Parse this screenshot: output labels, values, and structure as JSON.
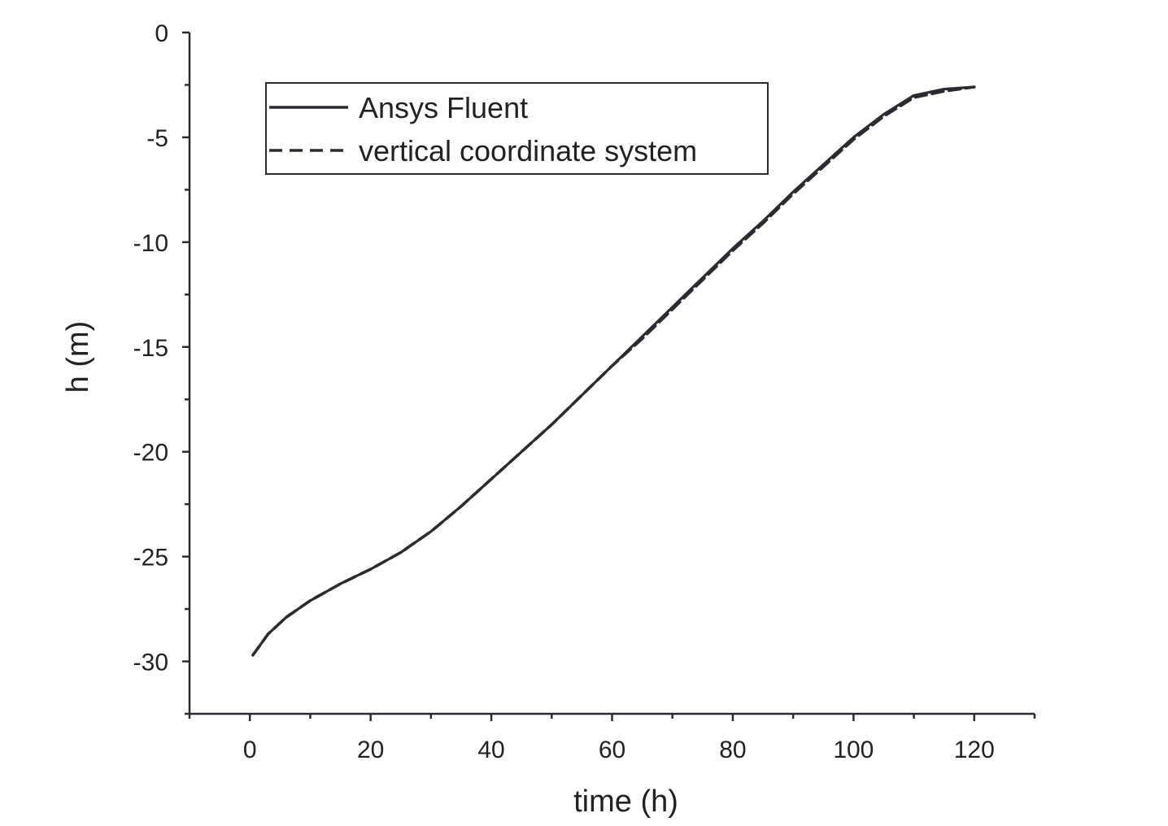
{
  "chart_data": {
    "type": "line",
    "title": "",
    "xlabel": "time (h)",
    "ylabel": "h (m)",
    "xlim": [
      -10,
      130
    ],
    "ylim": [
      -32.5,
      0
    ],
    "xticks": [
      0,
      20,
      40,
      60,
      80,
      100,
      120
    ],
    "yticks": [
      0,
      -5,
      -10,
      -15,
      -20,
      -25,
      -30
    ],
    "grid": false,
    "legend_position": "top-left",
    "series": [
      {
        "name": "Ansys Fluent",
        "style": "solid",
        "color": "#2b2b33",
        "x": [
          0.5,
          3,
          6,
          10,
          15,
          20,
          25,
          30,
          35,
          40,
          45,
          50,
          55,
          60,
          65,
          70,
          75,
          80,
          85,
          90,
          95,
          100,
          105,
          110,
          115,
          120
        ],
        "y": [
          -29.7,
          -28.7,
          -27.9,
          -27.1,
          -26.3,
          -25.6,
          -24.8,
          -23.8,
          -22.6,
          -21.3,
          -20.0,
          -18.7,
          -17.3,
          -15.9,
          -14.5,
          -13.1,
          -11.7,
          -10.3,
          -9.0,
          -7.6,
          -6.3,
          -5.0,
          -3.9,
          -3.0,
          -2.7,
          -2.6
        ]
      },
      {
        "name": "vertical coordinate system",
        "style": "dashed",
        "color": "#2b2b33",
        "x": [
          0.5,
          3,
          6,
          10,
          15,
          20,
          25,
          30,
          35,
          40,
          45,
          50,
          55,
          60,
          65,
          70,
          75,
          80,
          85,
          90,
          95,
          100,
          105,
          110,
          115,
          120
        ],
        "y": [
          -29.7,
          -28.7,
          -27.9,
          -27.1,
          -26.3,
          -25.6,
          -24.8,
          -23.8,
          -22.6,
          -21.3,
          -20.0,
          -18.7,
          -17.3,
          -15.9,
          -14.6,
          -13.2,
          -11.8,
          -10.4,
          -9.1,
          -7.7,
          -6.4,
          -5.1,
          -4.0,
          -3.1,
          -2.8,
          -2.6
        ]
      }
    ]
  }
}
